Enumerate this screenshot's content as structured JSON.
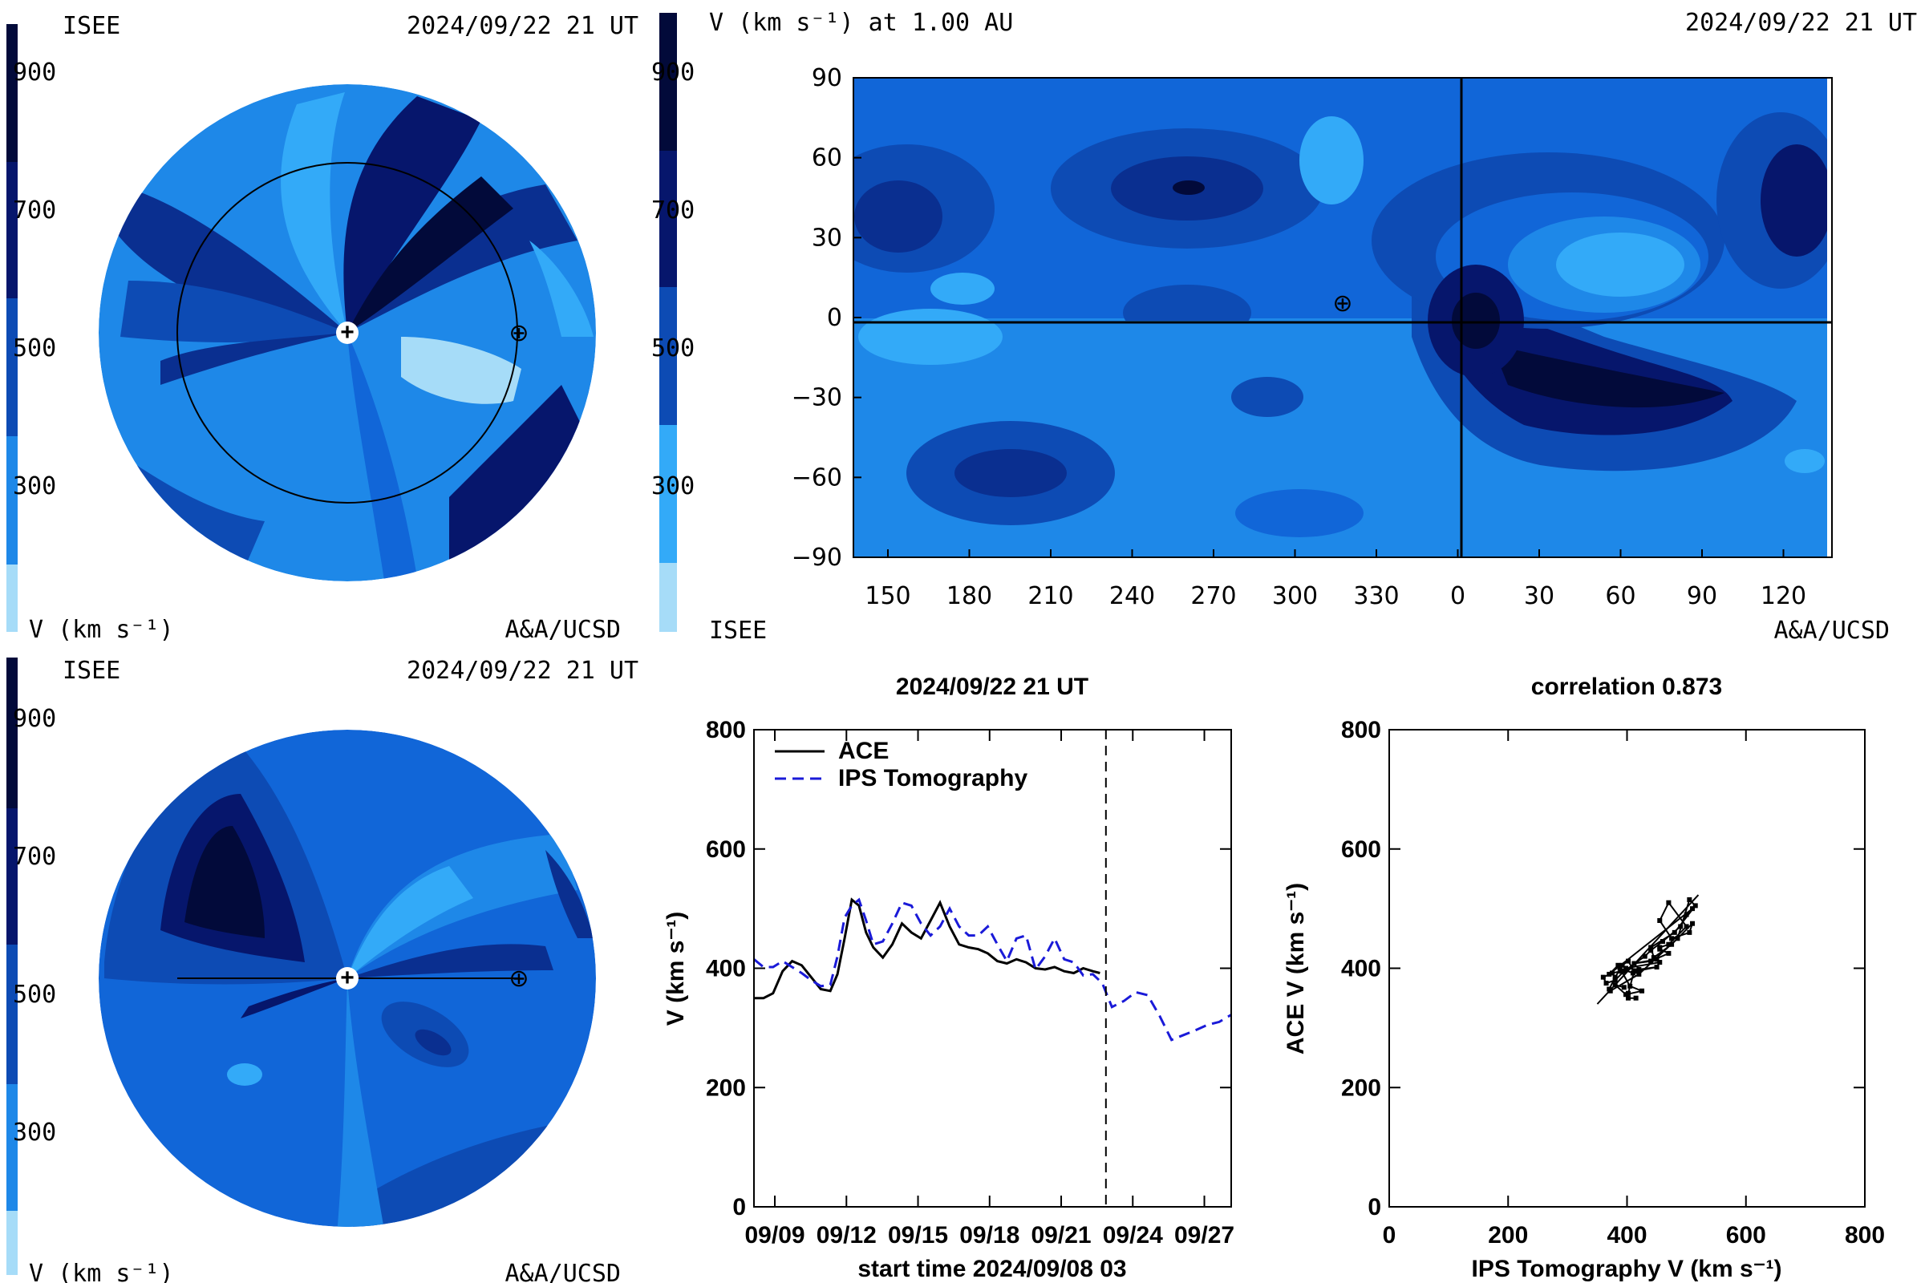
{
  "colors": {
    "v_levels": [
      "#a6dcf8",
      "#33aaf8",
      "#1e88e8",
      "#1166d8",
      "#0d4bb4",
      "#0a2f90",
      "#06166c",
      "#020a3a"
    ],
    "line_ace": "#000000",
    "line_ips": "#1a1ad8"
  },
  "panels": {
    "top_left": {
      "label_isee": "ISEE",
      "timestamp": "2024/09/22 21 UT",
      "unit": "V (km s⁻¹)",
      "credit": "A&A/UCSD",
      "ticks": [
        "900",
        "700",
        "500",
        "300"
      ]
    },
    "top_right": {
      "title": "V (km s⁻¹) at 1.00 AU",
      "timestamp": "2024/09/22 21 UT",
      "label_isee": "ISEE",
      "credit": "A&A/UCSD",
      "ticks": [
        "900",
        "700",
        "500",
        "300"
      ]
    },
    "bottom_left": {
      "label_isee": "ISEE",
      "timestamp": "2024/09/22 21 UT",
      "unit": "V (km s⁻¹)",
      "credit": "A&A/UCSD",
      "ticks": [
        "900",
        "700",
        "500",
        "300"
      ]
    }
  },
  "chart_data": [
    {
      "type": "heatmap",
      "title": "V (km s⁻¹) at 1.00 AU",
      "x_ticks": [
        "150",
        "180",
        "210",
        "240",
        "270",
        "300",
        "330",
        "0",
        "30",
        "60",
        "90",
        "120"
      ],
      "y_ticks": [
        "90",
        "60",
        "30",
        "0",
        "−30",
        "−60",
        "−90"
      ],
      "ylim": [
        -90,
        90
      ]
    },
    {
      "type": "line",
      "title": "2024/09/22 21 UT",
      "xlabel": "start time 2024/09/08 03",
      "ylabel": "V (km s⁻¹)",
      "ylim": [
        0,
        800
      ],
      "xlim": [
        0,
        20
      ],
      "x_tick_labels": [
        "09/09",
        "09/12",
        "09/15",
        "09/18",
        "09/21",
        "09/24",
        "09/27"
      ],
      "x_tick_values": [
        0.875,
        3.875,
        6.875,
        9.875,
        12.875,
        15.875,
        18.875
      ],
      "y_ticks": [
        0,
        200,
        400,
        600,
        800
      ],
      "now_line_x": 14.75,
      "series": [
        {
          "name": "ACE",
          "style": "solid",
          "x": [
            0,
            0.4,
            0.8,
            1.2,
            1.6,
            2.0,
            2.4,
            2.8,
            3.2,
            3.5,
            3.8,
            4.1,
            4.4,
            4.7,
            5.0,
            5.4,
            5.8,
            6.2,
            6.6,
            7.0,
            7.4,
            7.8,
            8.2,
            8.6,
            9.0,
            9.4,
            9.8,
            10.2,
            10.6,
            11.0,
            11.4,
            11.8,
            12.2,
            12.6,
            13.0,
            13.4,
            13.8,
            14.2,
            14.5
          ],
          "y": [
            350,
            350,
            358,
            395,
            412,
            405,
            385,
            365,
            362,
            390,
            450,
            515,
            505,
            460,
            435,
            418,
            440,
            475,
            460,
            450,
            480,
            510,
            470,
            440,
            435,
            432,
            425,
            412,
            408,
            415,
            410,
            400,
            398,
            402,
            395,
            392,
            400,
            395,
            392
          ]
        },
        {
          "name": "IPS Tomography",
          "style": "dashed",
          "x": [
            0,
            0.4,
            0.8,
            1.2,
            1.6,
            2.0,
            2.4,
            2.8,
            3.2,
            3.5,
            3.8,
            4.1,
            4.4,
            4.7,
            5.0,
            5.4,
            5.8,
            6.2,
            6.6,
            7.0,
            7.4,
            7.8,
            8.2,
            8.6,
            9.0,
            9.4,
            9.8,
            10.2,
            10.6,
            11.0,
            11.4,
            11.8,
            12.2,
            12.6,
            13.0,
            13.4,
            13.8,
            14.2,
            14.6,
            15.0,
            15.5,
            16.0,
            16.5,
            17.0,
            17.5,
            18.0,
            18.5,
            19.0,
            19.5,
            20.0
          ],
          "y": [
            415,
            402,
            402,
            412,
            402,
            392,
            380,
            370,
            372,
            420,
            485,
            505,
            515,
            480,
            440,
            445,
            475,
            510,
            505,
            475,
            455,
            470,
            500,
            470,
            455,
            455,
            470,
            440,
            412,
            450,
            455,
            398,
            420,
            450,
            415,
            410,
            388,
            390,
            375,
            335,
            345,
            360,
            355,
            320,
            280,
            288,
            296,
            305,
            310,
            322
          ]
        }
      ]
    },
    {
      "type": "scatter",
      "title": "correlation 0.873",
      "xlabel": "IPS Tomography V (km s⁻¹)",
      "ylabel": "ACE V (km s⁻¹)",
      "xlim": [
        0,
        800
      ],
      "ylim": [
        0,
        800
      ],
      "x_ticks": [
        0,
        200,
        400,
        600,
        800
      ],
      "y_ticks": [
        0,
        200,
        400,
        600,
        800
      ],
      "points": [
        [
          415,
          350
        ],
        [
          402,
          350
        ],
        [
          402,
          358
        ],
        [
          412,
          395
        ],
        [
          402,
          412
        ],
        [
          392,
          405
        ],
        [
          380,
          385
        ],
        [
          370,
          365
        ],
        [
          372,
          362
        ],
        [
          420,
          390
        ],
        [
          485,
          450
        ],
        [
          505,
          515
        ],
        [
          515,
          505
        ],
        [
          480,
          460
        ],
        [
          440,
          435
        ],
        [
          445,
          418
        ],
        [
          475,
          440
        ],
        [
          510,
          475
        ],
        [
          505,
          460
        ],
        [
          475,
          450
        ],
        [
          455,
          480
        ],
        [
          470,
          510
        ],
        [
          500,
          470
        ],
        [
          470,
          440
        ],
        [
          455,
          435
        ],
        [
          455,
          432
        ],
        [
          470,
          425
        ],
        [
          440,
          412
        ],
        [
          412,
          408
        ],
        [
          450,
          415
        ],
        [
          455,
          410
        ],
        [
          398,
          400
        ],
        [
          420,
          398
        ],
        [
          450,
          402
        ],
        [
          415,
          395
        ],
        [
          410,
          392
        ],
        [
          388,
          400
        ],
        [
          390,
          395
        ],
        [
          375,
          392
        ],
        [
          360,
          385
        ],
        [
          365,
          375
        ],
        [
          380,
          380
        ],
        [
          395,
          395
        ],
        [
          430,
          420
        ],
        [
          440,
          430
        ],
        [
          460,
          445
        ],
        [
          490,
          470
        ],
        [
          500,
          490
        ],
        [
          510,
          500
        ],
        [
          370,
          390
        ],
        [
          385,
          405
        ],
        [
          405,
          370
        ],
        [
          425,
          362
        ],
        [
          398,
          356
        ],
        [
          380,
          372
        ],
        [
          395,
          368
        ]
      ],
      "fit_line": [
        [
          350,
          340
        ],
        [
          520,
          523
        ]
      ]
    }
  ],
  "polar": {
    "top": {
      "sun_marker": "+",
      "earth_marker": "⊕"
    },
    "bottom": {
      "sun_marker": "+",
      "earth_marker": "⊕"
    }
  },
  "earth_symbol": "⊕"
}
